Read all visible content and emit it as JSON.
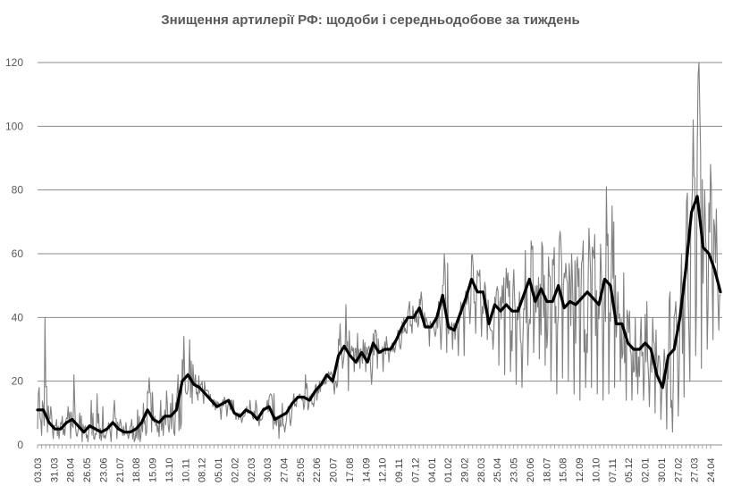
{
  "chart_data": {
    "type": "line",
    "title": "Знищення артилерії РФ: щодоби і середньодобове за тиждень",
    "xlabel": "",
    "ylabel": "",
    "ylim": [
      0,
      120
    ],
    "yticks": [
      0,
      20,
      40,
      60,
      80,
      100,
      120
    ],
    "grid": true,
    "legend": "none",
    "x_tick_labels": [
      "03.03",
      "31.03",
      "28.04",
      "26.05",
      "23.06",
      "21.07",
      "18.08",
      "15.09",
      "13.10",
      "10.11",
      "08.12",
      "05.01",
      "02.02",
      "02.03",
      "30.03",
      "27.04",
      "25.05",
      "22.06",
      "20.07",
      "17.08",
      "14.09",
      "12.10",
      "09.11",
      "07.12",
      "04.01",
      "01.02",
      "29.02",
      "28.03",
      "25.04",
      "23.05",
      "20.06",
      "18.07",
      "15.08",
      "12.09",
      "10.10",
      "07.11",
      "05.12",
      "02.01",
      "30.01",
      "27.02",
      "27.03",
      "24.04"
    ],
    "series": [
      {
        "color": "#808080",
        "weekly_peaks": [
          18,
          40,
          12,
          8,
          9,
          12,
          22,
          10,
          6,
          14,
          16,
          12,
          7,
          14,
          8,
          7,
          8,
          11,
          13,
          21,
          9,
          14,
          17,
          16,
          22,
          34,
          33,
          22,
          19,
          17,
          12,
          13,
          15,
          11,
          8,
          7,
          10,
          8,
          6,
          11,
          16,
          6,
          13,
          12,
          16,
          16,
          22,
          16,
          14,
          19,
          23,
          16,
          38,
          44,
          31,
          35,
          33,
          31,
          36,
          29,
          34,
          32,
          36,
          40,
          45,
          42,
          48,
          39,
          38,
          45,
          60,
          36,
          37,
          41,
          46,
          56,
          53,
          51,
          36,
          48,
          50,
          54,
          55,
          48,
          61,
          64,
          50,
          62,
          59,
          62,
          67,
          57,
          60,
          59,
          64,
          68,
          66,
          63,
          81,
          75,
          48,
          54,
          42,
          40,
          40,
          45,
          40,
          28,
          30,
          48,
          45,
          60,
          79,
          102,
          122,
          80,
          88,
          74,
          62
        ],
        "weekly_lows": [
          3,
          4,
          2,
          2,
          3,
          2,
          3,
          1,
          1,
          2,
          2,
          2,
          1,
          2,
          3,
          2,
          1,
          1,
          3,
          4,
          4,
          3,
          4,
          3,
          5,
          16,
          13,
          14,
          13,
          14,
          11,
          8,
          9,
          11,
          8,
          9,
          14,
          14,
          8,
          14,
          5,
          2,
          4,
          6,
          12,
          14,
          11,
          12,
          20,
          20,
          23,
          18,
          24,
          17,
          23,
          24,
          23,
          19,
          24,
          23,
          26,
          29,
          30,
          35,
          35,
          37,
          37,
          31,
          34,
          30,
          29,
          30,
          28,
          28,
          38,
          35,
          34,
          33,
          30,
          25,
          22,
          23,
          19,
          18,
          25,
          29,
          27,
          25,
          20,
          16,
          21,
          20,
          16,
          14,
          18,
          18,
          16,
          14,
          16,
          18,
          20,
          14,
          14,
          16,
          14,
          12,
          10,
          8,
          5,
          4,
          9,
          15,
          20,
          28,
          24,
          30,
          33,
          36,
          34
        ]
      },
      {
        "color": "#000000",
        "weekly_avg": [
          11,
          11,
          7,
          5,
          5,
          7,
          8,
          6,
          4,
          6,
          5,
          4,
          5,
          7,
          5,
          4,
          4,
          5,
          7,
          11,
          8,
          7,
          9,
          9,
          11,
          20,
          22,
          19,
          18,
          16,
          14,
          12,
          13,
          14,
          10,
          9,
          11,
          10,
          8,
          11,
          12,
          8,
          9,
          10,
          13,
          15,
          15,
          14,
          17,
          19,
          22,
          20,
          28,
          31,
          28,
          26,
          29,
          26,
          32,
          29,
          30,
          30,
          33,
          37,
          40,
          40,
          43,
          37,
          37,
          40,
          47,
          37,
          36,
          41,
          46,
          52,
          48,
          48,
          38,
          44,
          42,
          44,
          42,
          42,
          47,
          52,
          45,
          49,
          45,
          45,
          50,
          43,
          45,
          44,
          46,
          48,
          46,
          44,
          52,
          50,
          38,
          38,
          32,
          30,
          30,
          32,
          30,
          22,
          18,
          28,
          30,
          40,
          55,
          73,
          78,
          62,
          60,
          55,
          48
        ]
      }
    ]
  }
}
